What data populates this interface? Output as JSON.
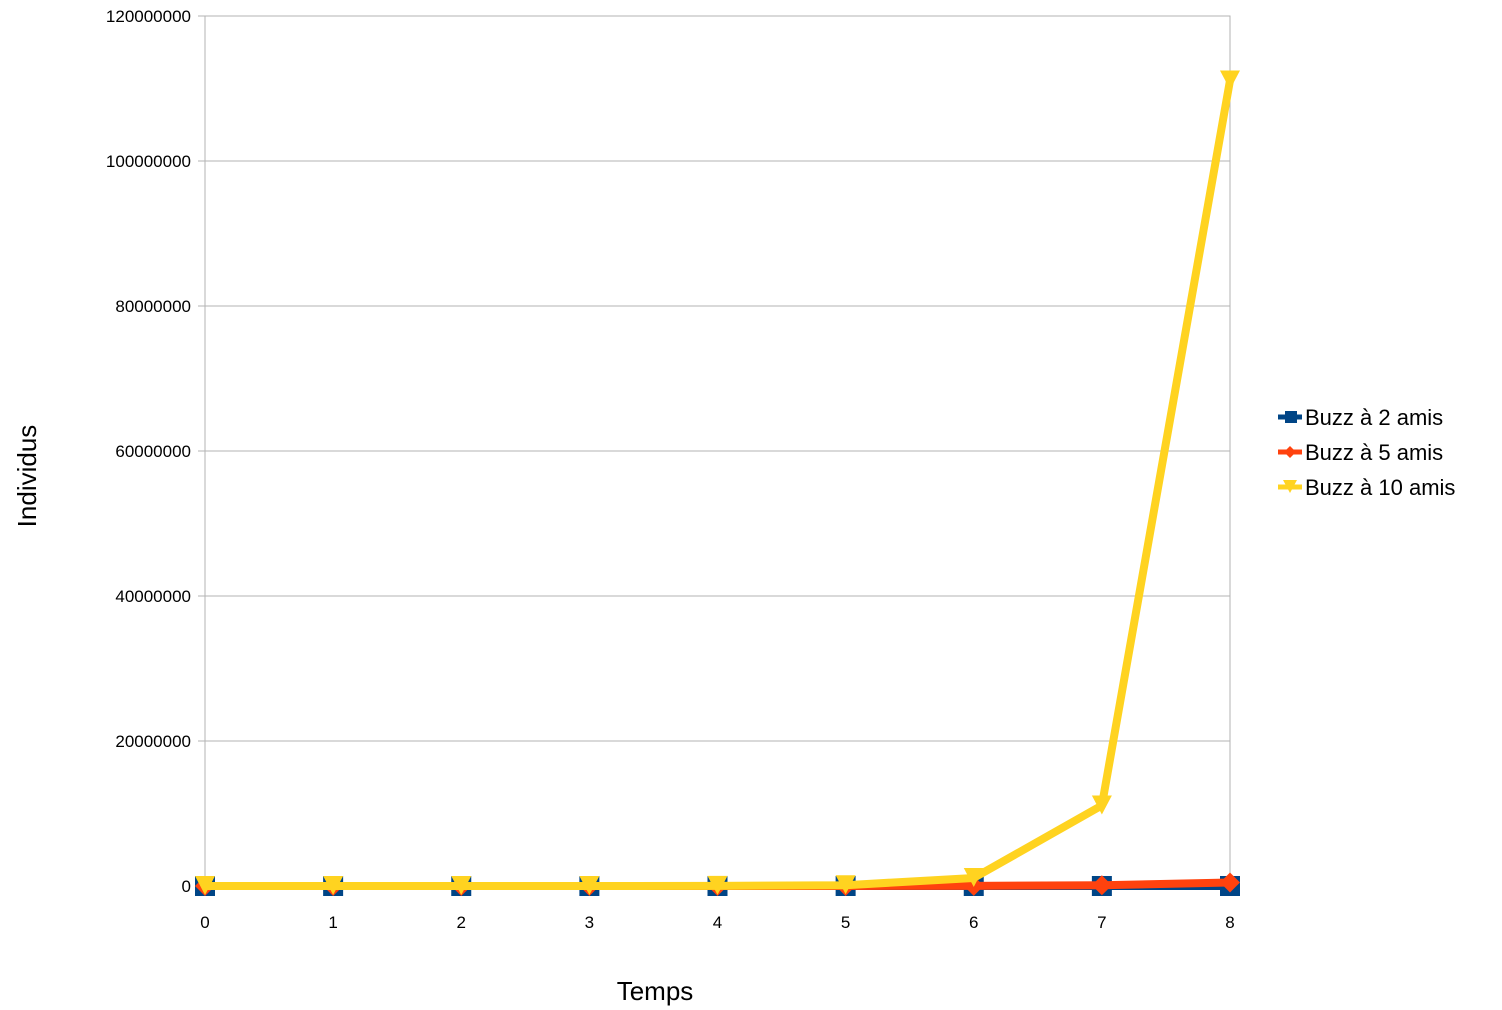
{
  "chart_data": {
    "type": "line",
    "title": "",
    "xlabel": "Temps",
    "ylabel": "Individus",
    "x": [
      0,
      1,
      2,
      3,
      4,
      5,
      6,
      7,
      8
    ],
    "x_tick_labels": [
      "0",
      "1",
      "2",
      "3",
      "4",
      "5",
      "6",
      "7",
      "8"
    ],
    "y_tick_labels": [
      "0",
      "20000000",
      "40000000",
      "60000000",
      "80000000",
      "100000000",
      "120000000"
    ],
    "ylim": [
      0,
      120000000
    ],
    "grid": true,
    "legend_position": "right",
    "series": [
      {
        "name": "Buzz à 2 amis",
        "color": "#004586",
        "marker": "square",
        "values": [
          1,
          3,
          7,
          15,
          31,
          63,
          127,
          255,
          511
        ]
      },
      {
        "name": "Buzz à 5 amis",
        "color": "#ff420e",
        "marker": "diamond",
        "values": [
          1,
          6,
          31,
          156,
          781,
          3906,
          19531,
          97656,
          488281
        ]
      },
      {
        "name": "Buzz à 10 amis",
        "color": "#ffd320",
        "marker": "triangle-down",
        "values": [
          1,
          11,
          111,
          1111,
          11111,
          111111,
          1111111,
          11111111,
          111111111
        ]
      }
    ]
  }
}
